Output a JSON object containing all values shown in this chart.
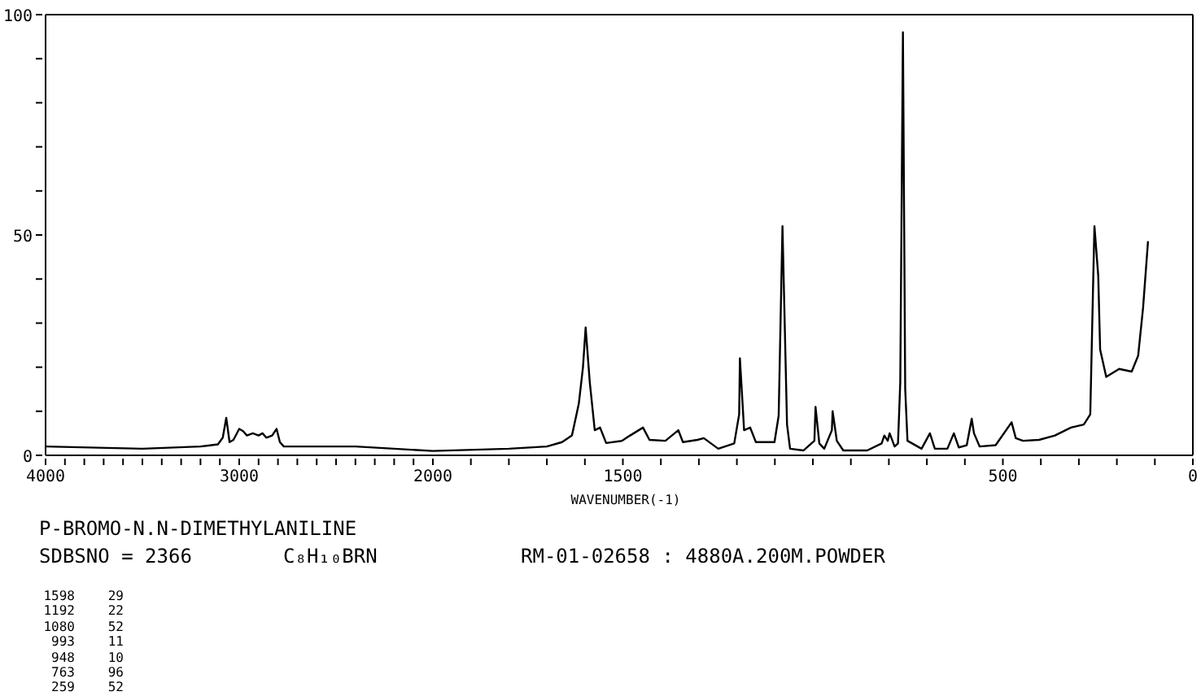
{
  "chart_data": [
    {
      "type": "line",
      "title": "P-BROMO-N.N-DIMETHYLANILINE",
      "x": [
        4000,
        3500,
        3200,
        3110,
        3085,
        3067,
        3050,
        3030,
        3000,
        2980,
        2960,
        2930,
        2900,
        2880,
        2860,
        2830,
        2807,
        2790,
        2770,
        2600,
        2400,
        2200,
        2000
      ],
      "values": [
        2,
        1.5,
        2,
        2.5,
        4,
        8.5,
        3,
        3.5,
        6,
        5.5,
        4.5,
        5,
        4.5,
        5,
        4,
        4.5,
        6,
        3,
        2,
        2,
        2,
        1.5,
        1
      ],
      "color": "#000000",
      "marker": "none",
      "line_style": "solid",
      "xlim": [
        4000,
        2000
      ],
      "xticks": [
        4000,
        {
          "value": 3900,
          "label": null
        },
        {
          "value": 3800,
          "label": null
        },
        {
          "value": 3700,
          "label": null
        },
        {
          "value": 3600,
          "label": null
        },
        {
          "value": 3500,
          "label": null
        },
        {
          "value": 3400,
          "label": null
        },
        {
          "value": 3300,
          "label": null
        },
        {
          "value": 3200,
          "label": null
        },
        {
          "value": 3100,
          "label": null
        },
        3000,
        {
          "value": 2900,
          "label": null
        },
        {
          "value": 2800,
          "label": null
        },
        {
          "value": 2700,
          "label": null
        },
        {
          "value": 2600,
          "label": null
        },
        {
          "value": 2500,
          "label": null
        },
        {
          "value": 2400,
          "label": null
        },
        {
          "value": 2300,
          "label": null
        },
        {
          "value": 2200,
          "label": null
        },
        {
          "value": 2100,
          "label": null
        },
        2000
      ],
      "ylim": [
        0,
        100
      ],
      "yticks": [
        0,
        {
          "value": 10,
          "label": null
        },
        {
          "value": 20,
          "label": null
        },
        {
          "value": 30,
          "label": null
        },
        {
          "value": 40,
          "label": null
        },
        50,
        {
          "value": 60,
          "label": null
        },
        {
          "value": 70,
          "label": null
        },
        {
          "value": 80,
          "label": null
        },
        {
          "value": 90,
          "label": null
        },
        100
      ],
      "annotations": [
        "SDBSNO = 2366",
        "C₈H₁₀BRN",
        "RM-01-02658 : 4880A.200M.POWDER",
        "1598 29",
        "1192 22",
        "1080 52",
        "993 11",
        "948 10",
        "763 96",
        "259 52"
      ]
    },
    {
      "type": "line",
      "xlabel": "WAVENUMBER(-1)",
      "x": [
        2000,
        1800,
        1700,
        1660,
        1634,
        1616,
        1605,
        1598,
        1587,
        1574,
        1560,
        1544,
        1502,
        1481,
        1447,
        1430,
        1388,
        1354,
        1342,
        1304,
        1287,
        1249,
        1207,
        1194,
        1192,
        1181,
        1165,
        1150,
        1101,
        1090,
        1080,
        1068,
        1060,
        1025,
        996,
        993,
        983,
        970,
        950,
        948,
        937,
        920,
        857,
        819,
        812,
        803,
        798,
        785,
        776,
        770,
        763,
        757,
        751,
        714,
        692,
        679,
        646,
        629,
        616,
        595,
        582,
        576,
        561,
        519,
        477,
        466,
        447,
        405,
        363,
        321,
        287,
        270,
        262,
        259,
        249,
        244,
        228,
        194,
        161,
        144,
        131,
        118
      ],
      "values": [
        1,
        1.5,
        2,
        3,
        4.5,
        11.7,
        20,
        29,
        16.5,
        5.7,
        6.3,
        2.8,
        3.3,
        4.5,
        6.3,
        3.5,
        3.3,
        5.7,
        3,
        3.5,
        3.9,
        1.5,
        2.7,
        9.3,
        22,
        5.7,
        6.3,
        3,
        3,
        9,
        52,
        7,
        1.5,
        1.1,
        3.3,
        11,
        2.7,
        1.5,
        5.7,
        10,
        3.3,
        1.1,
        1.1,
        2.7,
        4.5,
        3.3,
        5,
        2,
        2.7,
        16.5,
        96,
        15,
        3.3,
        1.5,
        5,
        1.5,
        1.5,
        5,
        1.8,
        2.3,
        8.3,
        5,
        2,
        2.3,
        7.5,
        3.9,
        3.3,
        3.5,
        4.5,
        6.3,
        7,
        9.3,
        40.7,
        52,
        40.7,
        24,
        17.8,
        19.6,
        19,
        22.6,
        33.5,
        48.6
      ],
      "color": "#000000",
      "marker": "none",
      "line_style": "solid",
      "xlim": [
        2000,
        0
      ],
      "xticks": [
        {
          "value": 1900,
          "label": null
        },
        {
          "value": 1800,
          "label": null
        },
        {
          "value": 1700,
          "label": null
        },
        {
          "value": 1600,
          "label": null
        },
        1500,
        {
          "value": 1400,
          "label": null
        },
        {
          "value": 1300,
          "label": null
        },
        {
          "value": 1200,
          "label": null
        },
        {
          "value": 1100,
          "label": null
        },
        {
          "value": 1000,
          "label": null
        },
        {
          "value": 900,
          "label": null
        },
        {
          "value": 800,
          "label": null
        },
        {
          "value": 700,
          "label": null
        },
        {
          "value": 600,
          "label": null
        },
        500,
        {
          "value": 400,
          "label": null
        },
        {
          "value": 300,
          "label": null
        },
        {
          "value": 200,
          "label": null
        },
        {
          "value": 100,
          "label": null
        },
        0
      ],
      "ylim": [
        0,
        100
      ],
      "tick_labels": "x"
    }
  ]
}
